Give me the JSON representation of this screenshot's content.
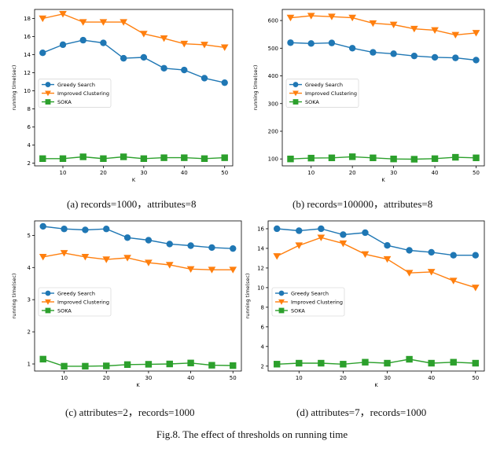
{
  "figure_caption": "Fig.8. The effect of thresholds on running time",
  "colors": {
    "greedy": "#1f77b4",
    "improved": "#ff7f0e",
    "soka": "#2ca02c"
  },
  "chart_data": [
    {
      "type": "line",
      "caption": "(a)  records=1000，attributes=8",
      "xlabel": "K",
      "ylabel": "running time(sec)",
      "x": [
        5,
        10,
        15,
        20,
        25,
        30,
        35,
        40,
        45,
        50
      ],
      "xticks": [
        10,
        20,
        30,
        40,
        50
      ],
      "xlim": [
        3,
        52
      ],
      "yticks": [
        2,
        4,
        6,
        8,
        10,
        12,
        14,
        16,
        18
      ],
      "ylim": [
        1.7,
        19
      ],
      "legend": "center-left",
      "series": [
        {
          "name": "Greedy Search",
          "marker": "circle",
          "values": [
            14.2,
            15.1,
            15.6,
            15.3,
            13.6,
            13.7,
            12.5,
            12.3,
            11.4,
            10.9
          ]
        },
        {
          "name": "Improved Clustering",
          "marker": "triangle-down",
          "values": [
            18.0,
            18.5,
            17.6,
            17.6,
            17.6,
            16.3,
            15.8,
            15.2,
            15.1,
            14.8
          ]
        },
        {
          "name": "SOKA",
          "marker": "square",
          "values": [
            2.5,
            2.5,
            2.7,
            2.5,
            2.7,
            2.5,
            2.6,
            2.6,
            2.5,
            2.6
          ]
        }
      ]
    },
    {
      "type": "line",
      "caption": "(b)  records=100000，attributes=8",
      "xlabel": "K",
      "ylabel": "running time(sec)",
      "x": [
        5,
        10,
        15,
        20,
        25,
        30,
        35,
        40,
        45,
        50
      ],
      "xticks": [
        10,
        20,
        30,
        40,
        50
      ],
      "xlim": [
        3,
        52
      ],
      "yticks": [
        100,
        200,
        300,
        400,
        500,
        600
      ],
      "ylim": [
        75,
        640
      ],
      "legend": "center-left",
      "series": [
        {
          "name": "Greedy Search",
          "marker": "circle",
          "values": [
            520,
            517,
            519,
            500,
            485,
            480,
            472,
            467,
            465,
            457
          ]
        },
        {
          "name": "Improved Clustering",
          "marker": "triangle-down",
          "values": [
            610,
            617,
            614,
            610,
            590,
            585,
            570,
            565,
            548,
            555
          ]
        },
        {
          "name": "SOKA",
          "marker": "square",
          "values": [
            100,
            103,
            104,
            108,
            104,
            100,
            99,
            101,
            106,
            104
          ]
        }
      ]
    },
    {
      "type": "line",
      "caption": "(c)  attributes=2，records=1000",
      "xlabel": "K",
      "ylabel": "running time(sec)",
      "x": [
        5,
        10,
        15,
        20,
        25,
        30,
        35,
        40,
        45,
        50
      ],
      "xticks": [
        10,
        20,
        30,
        40,
        50
      ],
      "xlim": [
        3,
        52
      ],
      "yticks": [
        1,
        2,
        3,
        4,
        5
      ],
      "ylim": [
        0.78,
        5.45
      ],
      "legend": "center-left",
      "series": [
        {
          "name": "Greedy Search",
          "marker": "circle",
          "values": [
            5.28,
            5.2,
            5.17,
            5.2,
            4.93,
            4.85,
            4.73,
            4.68,
            4.62,
            4.59
          ]
        },
        {
          "name": "Improved Clustering",
          "marker": "triangle-down",
          "values": [
            4.33,
            4.45,
            4.33,
            4.25,
            4.3,
            4.15,
            4.08,
            3.95,
            3.93,
            3.93
          ]
        },
        {
          "name": "SOKA",
          "marker": "square",
          "values": [
            1.15,
            0.93,
            0.93,
            0.94,
            0.98,
            0.99,
            1.0,
            1.03,
            0.96,
            0.95
          ]
        }
      ]
    },
    {
      "type": "line",
      "caption": "(d)  attributes=7，records=1000",
      "xlabel": "K",
      "ylabel": "running time(sec)",
      "x": [
        5,
        10,
        15,
        20,
        25,
        30,
        35,
        40,
        45,
        50
      ],
      "xticks": [
        10,
        20,
        30,
        40,
        50
      ],
      "xlim": [
        3,
        52
      ],
      "yticks": [
        2,
        4,
        6,
        8,
        10,
        12,
        14,
        16
      ],
      "ylim": [
        1.5,
        16.8
      ],
      "legend": "center-left",
      "series": [
        {
          "name": "Greedy Search",
          "marker": "circle",
          "values": [
            16.0,
            15.8,
            16.0,
            15.4,
            15.6,
            14.3,
            13.8,
            13.6,
            13.3,
            13.3
          ]
        },
        {
          "name": "Improved Clustering",
          "marker": "triangle-down",
          "values": [
            13.2,
            14.3,
            15.1,
            14.5,
            13.4,
            12.9,
            11.5,
            11.6,
            10.7,
            10.0
          ]
        },
        {
          "name": "SOKA",
          "marker": "square",
          "values": [
            2.2,
            2.3,
            2.3,
            2.2,
            2.4,
            2.3,
            2.7,
            2.3,
            2.4,
            2.3
          ]
        }
      ]
    }
  ]
}
